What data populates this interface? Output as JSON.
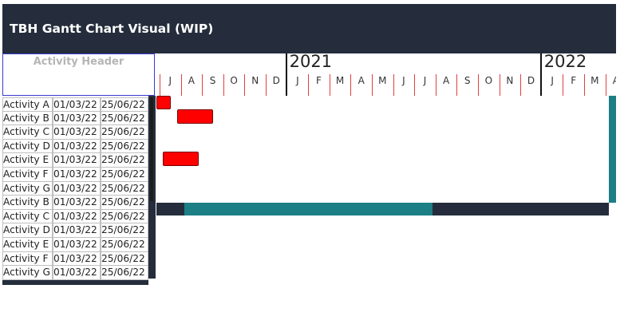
{
  "title": "TBH Gantt Chart Visual (WIP)",
  "activity_header": "Activity Header",
  "timeline": {
    "years": [
      "2021",
      "2022"
    ],
    "months": [
      "J",
      "A",
      "S",
      "O",
      "N",
      "D",
      "J",
      "F",
      "M",
      "A",
      "M",
      "J",
      "J",
      "A",
      "S",
      "O",
      "N",
      "D",
      "J",
      "F",
      "M",
      "A"
    ]
  },
  "rows": [
    {
      "activity": "Activity A",
      "start": "01/03/22",
      "end": "25/06/22"
    },
    {
      "activity": "Activity B",
      "start": "01/03/22",
      "end": "25/06/22"
    },
    {
      "activity": "Activity C",
      "start": "01/03/22",
      "end": "25/06/22"
    },
    {
      "activity": "Activity D",
      "start": "01/03/22",
      "end": "25/06/22"
    },
    {
      "activity": "Activity E",
      "start": "01/03/22",
      "end": "25/06/22"
    },
    {
      "activity": "Activity F",
      "start": "01/03/22",
      "end": "25/06/22"
    },
    {
      "activity": "Activity G",
      "start": "01/03/22",
      "end": "25/06/22"
    },
    {
      "activity": "Activity B",
      "start": "01/03/22",
      "end": "25/06/22"
    },
    {
      "activity": "Activity C",
      "start": "01/03/22",
      "end": "25/06/22"
    },
    {
      "activity": "Activity D",
      "start": "01/03/22",
      "end": "25/06/22"
    },
    {
      "activity": "Activity E",
      "start": "01/03/22",
      "end": "25/06/22"
    },
    {
      "activity": "Activity F",
      "start": "01/03/22",
      "end": "25/06/22"
    },
    {
      "activity": "Activity G",
      "start": "01/03/22",
      "end": "25/06/22"
    }
  ],
  "colors": {
    "header_bg": "#252d3c",
    "bar": "#ff0000",
    "accent": "#1b7f85",
    "tick": "#e04040"
  }
}
